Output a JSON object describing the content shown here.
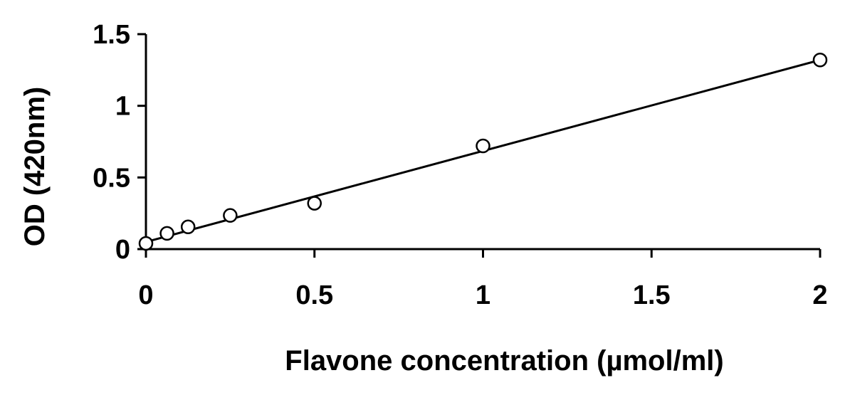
{
  "chart_data": {
    "type": "scatter",
    "title": "",
    "xlabel": "Flavone concentration (µmol/ml)",
    "ylabel": "OD (420nm)",
    "xlim": [
      0,
      2
    ],
    "ylim": [
      0,
      1.5
    ],
    "xticks": [
      "0",
      "0.5",
      "1",
      "1.5",
      "2"
    ],
    "yticks": [
      "0",
      "0.5",
      "1",
      "1.5"
    ],
    "grid": false,
    "legend": "none",
    "series": [
      {
        "x": [
          0,
          0.0625,
          0.125,
          0.25,
          0.5,
          1,
          2
        ],
        "y": [
          0.04,
          0.11,
          0.155,
          0.235,
          0.32,
          0.72,
          1.32
        ],
        "marker": "open-circle",
        "trendline": {
          "x": [
            0,
            2
          ],
          "y": [
            0.05,
            1.32
          ]
        }
      }
    ]
  }
}
